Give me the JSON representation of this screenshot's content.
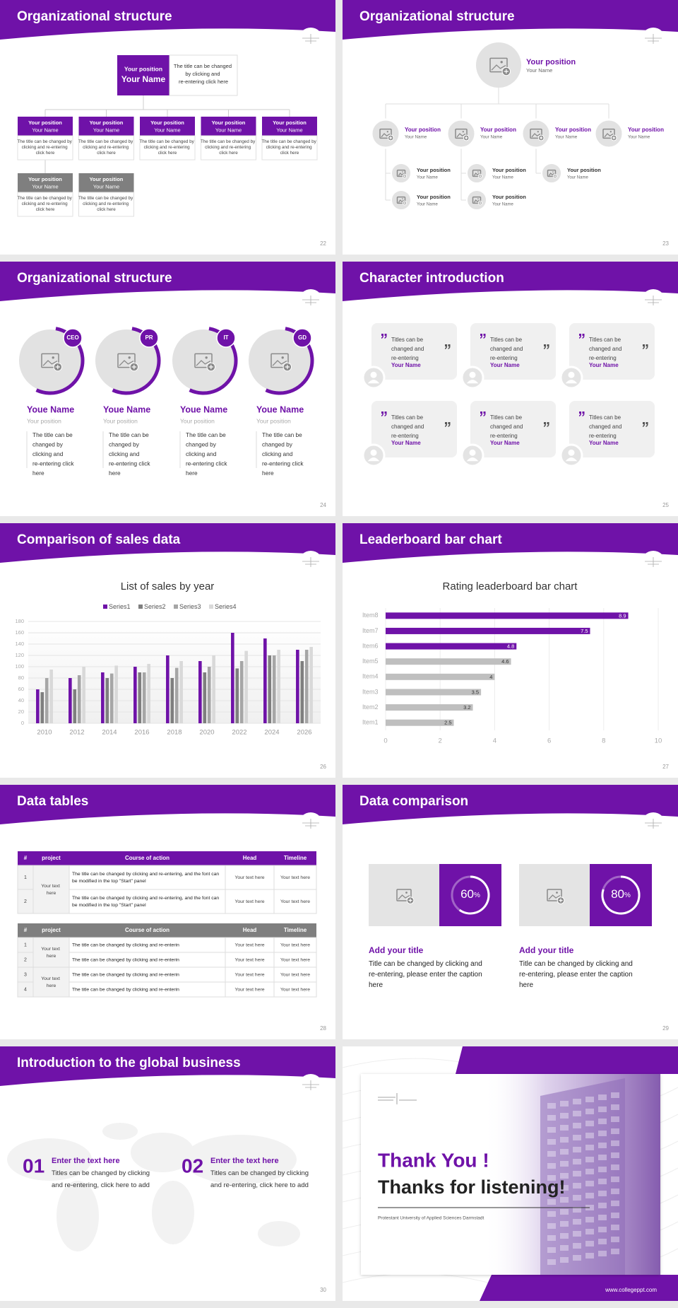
{
  "slides": [
    {
      "title": "Organizational structure",
      "page": 22,
      "top": {
        "position": "Your position",
        "name": "Your Name",
        "note": "The title can be changed by clicking and re-entering click here"
      },
      "members": [
        {
          "position": "Your position",
          "name": "Your Name",
          "note": "The title can be changed by clicking and re-entering click here",
          "color": "#6f12a8"
        },
        {
          "position": "Your position",
          "name": "Your Name",
          "note": "The title can be changed by clicking and re-entering click here",
          "color": "#6f12a8"
        },
        {
          "position": "Your position",
          "name": "Your Name",
          "note": "The title can be changed by clicking and re-entering click here",
          "color": "#6f12a8"
        },
        {
          "position": "Your position",
          "name": "Your Name",
          "note": "The title can be changed by clicking and re-entering click here",
          "color": "#6f12a8"
        },
        {
          "position": "Your position",
          "name": "Your Name",
          "note": "The title can be changed by clicking and re-entering click here",
          "color": "#6f12a8"
        },
        {
          "position": "Your position",
          "name": "Your Name",
          "note": "The title can be changed by clicking and re-entering click here",
          "color": "#7f7f7f"
        },
        {
          "position": "Your position",
          "name": "Your Name",
          "note": "The title can be changed by clicking and re-entering click here",
          "color": "#7f7f7f"
        }
      ]
    },
    {
      "title": "Organizational structure",
      "page": 23,
      "top": {
        "position": "Your position",
        "name": "Your Name"
      },
      "branches": [
        {
          "position": "Your position",
          "name": "Your Name",
          "children": [
            {
              "position": "Your position",
              "name": "Your Name"
            },
            {
              "position": "Your position",
              "name": "Your Name"
            }
          ]
        },
        {
          "position": "Your position",
          "name": "Your Name",
          "children": [
            {
              "position": "Your position",
              "name": "Your Name"
            },
            {
              "position": "Your position",
              "name": "Your Name"
            }
          ]
        },
        {
          "position": "Your position",
          "name": "Your Name",
          "children": [
            {
              "position": "Your position",
              "name": "Your Name"
            }
          ]
        },
        {
          "position": "Your position",
          "name": "Your Name",
          "children": []
        }
      ]
    },
    {
      "title": "Organizational structure",
      "page": 24,
      "people": [
        {
          "badge": "CEO",
          "name": "Youe Name",
          "position": "Your position",
          "note": "The title can be changed by clicking and re-entering click here"
        },
        {
          "badge": "PR",
          "name": "Youe Name",
          "position": "Your position",
          "note": "The title can be changed by clicking and re-entering click here"
        },
        {
          "badge": "IT",
          "name": "Youe Name",
          "position": "Your position",
          "note": "The title can be changed by clicking and re-entering click here"
        },
        {
          "badge": "GD",
          "name": "Youe Name",
          "position": "Your position",
          "note": "The title can be changed by clicking and re-entering click here"
        }
      ]
    },
    {
      "title": "Character introduction",
      "page": 25,
      "cards": [
        {
          "quote": "Titles can be changed and re-entering",
          "name": "Your Name"
        },
        {
          "quote": "Titles can be changed and re-entering",
          "name": "Your Name"
        },
        {
          "quote": "Titles can be changed and re-entering",
          "name": "Your Name"
        },
        {
          "quote": "Titles can be changed and re-entering",
          "name": "Your Name"
        },
        {
          "quote": "Titles can be changed and re-entering",
          "name": "Your Name"
        },
        {
          "quote": "Titles can be changed and re-entering",
          "name": "Your Name"
        }
      ]
    },
    {
      "title": "Comparison of sales data",
      "page": 26
    },
    {
      "title": "Leaderboard bar chart",
      "page": 27
    },
    {
      "title": "Data tables",
      "page": 28,
      "tables": [
        {
          "color": "#6f12a8",
          "header": [
            "#",
            "project",
            "Course of action",
            "Head",
            "Timeline"
          ],
          "projects": [
            "Your text here"
          ],
          "rows": [
            [
              "1",
              "The title can be changed by clicking and re-entering, and the font can be modified in the top \"Start\" panel",
              "Your text here",
              "Your text here"
            ],
            [
              "2",
              "The title can be changed by clicking and re-entering, and the font can be modified in the top \"Start\" panel",
              "Your text here",
              "Your text here"
            ]
          ]
        },
        {
          "color": "#7f7f7f",
          "header": [
            "#",
            "project",
            "Course of action",
            "Head",
            "Timeline"
          ],
          "projects": [
            "Your text here",
            "Your text here"
          ],
          "rows": [
            [
              "1",
              "The title can be changed by clicking and re-enterin",
              "Your text here",
              "Your text here"
            ],
            [
              "2",
              "The title can be changed by clicking and re-enterin",
              "Your text here",
              "Your text here"
            ],
            [
              "3",
              "The title can be changed by clicking and re-enterin",
              "Your text here",
              "Your text here"
            ],
            [
              "4",
              "The title can be changed by clicking and re-enterin",
              "Your text here",
              "Your text here"
            ]
          ]
        }
      ]
    },
    {
      "title": "Data comparison",
      "page": 29,
      "items": [
        {
          "value": 60,
          "unit": "%",
          "title": "Add your title",
          "caption": "Title can be changed by clicking and re-entering, please enter the caption here"
        },
        {
          "value": 80,
          "unit": "%",
          "title": "Add your title",
          "caption": "Title can be changed by clicking and re-entering, please enter the caption here"
        }
      ]
    },
    {
      "title": "Introduction to the global business",
      "page": 30,
      "items": [
        {
          "number": "01",
          "heading": "Enter the text here",
          "text": "Titles can be changed by clicking and re-entering, click here to add"
        },
        {
          "number": "02",
          "heading": "Enter the text here",
          "text": "Titles can be changed by clicking and re-entering, click here to add"
        }
      ]
    },
    {
      "title": "Thank You !",
      "subtitle": "Thanks for listening!",
      "caption": "Protestant University of Applied Sciences Darmstadt",
      "website": "www.collegeppt.com"
    }
  ],
  "chart_data": [
    {
      "type": "bar",
      "title": "List of sales by year",
      "categories": [
        "2010",
        "2012",
        "2014",
        "2016",
        "2018",
        "2020",
        "2022",
        "2024",
        "2026"
      ],
      "series": [
        {
          "name": "Series1",
          "color": "#6f12a8",
          "values": [
            60,
            80,
            90,
            100,
            120,
            110,
            160,
            150,
            130
          ]
        },
        {
          "name": "Series2",
          "color": "#7f7f7f",
          "values": [
            55,
            60,
            80,
            90,
            80,
            90,
            97,
            120,
            110
          ]
        },
        {
          "name": "Series3",
          "color": "#a6a6a6",
          "values": [
            80,
            85,
            88,
            90,
            98,
            100,
            110,
            120,
            130
          ]
        },
        {
          "name": "Series4",
          "color": "#d9d9d9",
          "values": [
            95,
            100,
            102,
            105,
            110,
            120,
            128,
            130,
            135
          ]
        }
      ],
      "ylim": [
        0,
        180
      ],
      "yticks": [
        0,
        20,
        40,
        60,
        80,
        100,
        120,
        140,
        160,
        180
      ],
      "grid": true,
      "legend": "top"
    },
    {
      "type": "barh",
      "title": "Rating leaderboard bar chart",
      "categories": [
        "Item8",
        "Item7",
        "Item6",
        "Item5",
        "Item4",
        "Item3",
        "Item2",
        "Item1"
      ],
      "values": [
        8.9,
        7.5,
        4.8,
        4.6,
        4,
        3.5,
        3.2,
        2.5
      ],
      "colors": [
        "#6f12a8",
        "#6f12a8",
        "#6f12a8",
        "#bfbfbf",
        "#bfbfbf",
        "#bfbfbf",
        "#bfbfbf",
        "#bfbfbf"
      ],
      "xlim": [
        0,
        10
      ],
      "xticks": [
        0,
        2,
        4,
        6,
        8,
        10
      ],
      "grid": true
    }
  ]
}
